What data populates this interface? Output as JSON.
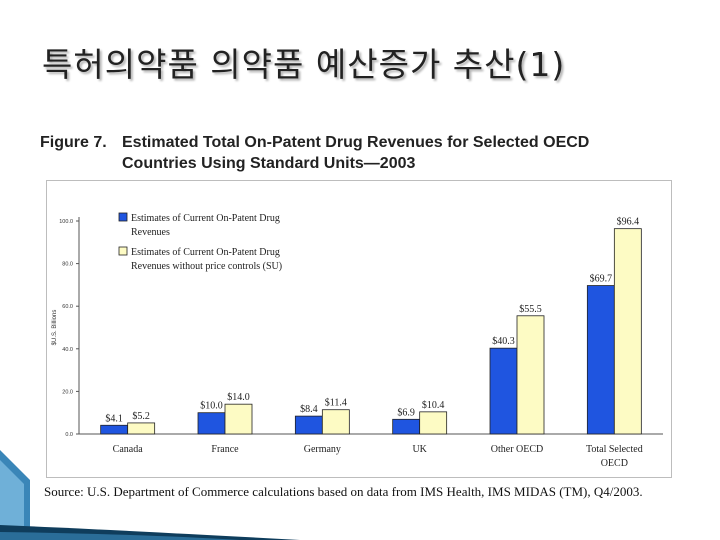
{
  "slide": {
    "title": "특허의약품 의약품 예산증가 추산(1)"
  },
  "figure": {
    "number": "Figure 7.",
    "title_line1": "Estimated Total On-Patent Drug Revenues for Selected OECD",
    "title_line2": "Countries Using Standard Units—2003"
  },
  "source_note": "Source:  U.S. Department of Commerce calculations based on data from IMS Health, IMS MIDAS (TM), Q4/2003.",
  "colors": {
    "series1": "#1f55e0",
    "series2": "#fdfbc4",
    "title_text": "#222222"
  },
  "chart_data": {
    "type": "bar",
    "categories": [
      "Canada",
      "France",
      "Germany",
      "UK",
      "Other OECD",
      "Total Selected OECD"
    ],
    "category_lines": [
      [
        "Canada"
      ],
      [
        "France"
      ],
      [
        "Germany"
      ],
      [
        "UK"
      ],
      [
        "Other OECD"
      ],
      [
        "Total Selected",
        "OECD"
      ]
    ],
    "series": [
      {
        "name": "Estimates of Current On-Patent Drug Revenues",
        "legend_lines": [
          "Estimates of Current On-Patent Drug",
          "Revenues"
        ],
        "values": [
          4.1,
          10.0,
          8.4,
          6.9,
          40.3,
          69.7
        ],
        "labels": [
          "$4.1",
          "$10.0",
          "$8.4",
          "$6.9",
          "$40.3",
          "$69.7"
        ]
      },
      {
        "name": "Estimates of Current On-Patent Drug Revenues without price controls (SU)",
        "legend_lines": [
          "Estimates of Current On-Patent Drug",
          "Revenues without price controls (SU)"
        ],
        "values": [
          5.2,
          14.0,
          11.4,
          10.4,
          55.5,
          96.4
        ],
        "labels": [
          "$5.2",
          "$14.0",
          "$11.4",
          "$10.4",
          "$55.5",
          "$96.4"
        ]
      }
    ],
    "ylabel": "$U.S. Billions",
    "ylim": [
      0,
      100
    ],
    "yticks": [
      0,
      20,
      40,
      60,
      80,
      100
    ],
    "ytick_labels": [
      "0.0",
      "20.0",
      "40.0",
      "60.0",
      "80.0",
      "100.0"
    ],
    "legend_position": "top-left",
    "grid": false
  }
}
